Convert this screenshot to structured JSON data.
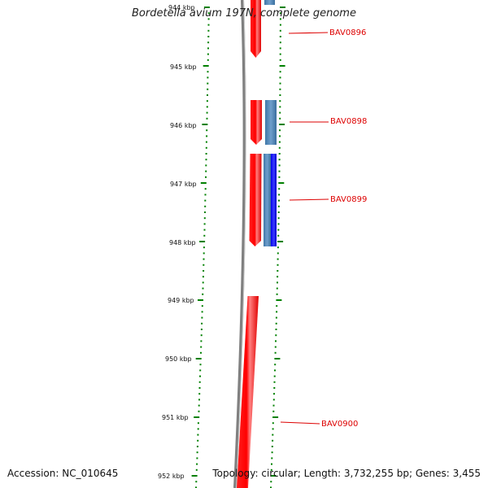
{
  "title": "Bordetella avium 197N, complete genome",
  "accession_text": "Accession: NC_010645",
  "topology_text": "Topology: circular; Length: 3,732,255 bp; Genes: 3,455",
  "scale": {
    "labels": [
      "944 kbp",
      "945 kbp",
      "946 kbp",
      "947 kbp",
      "948 kbp",
      "949 kbp",
      "950 kbp",
      "951 kbp",
      "952 kbp"
    ],
    "tick_color": "#008000"
  },
  "genes": [
    {
      "label": "BAV0896",
      "strand": "forward",
      "color": "#ff0000"
    },
    {
      "label": "BAV0898",
      "strand": "forward",
      "color": "#ff0000"
    },
    {
      "label": "BAV0899",
      "strand": "forward",
      "color": "#ff0000"
    },
    {
      "label": "BAV0900",
      "strand": "forward",
      "color": "#ff0000"
    }
  ],
  "features": [
    {
      "name": "blue-feature-1",
      "color": "#4682b4"
    },
    {
      "name": "blue-feature-2",
      "color": "#4682b4"
    },
    {
      "name": "blue-feature-3",
      "color": "#0000ee"
    }
  ],
  "colors": {
    "backbone": "#808080",
    "gene_label": "#dd0000",
    "ticks": "#008000"
  }
}
